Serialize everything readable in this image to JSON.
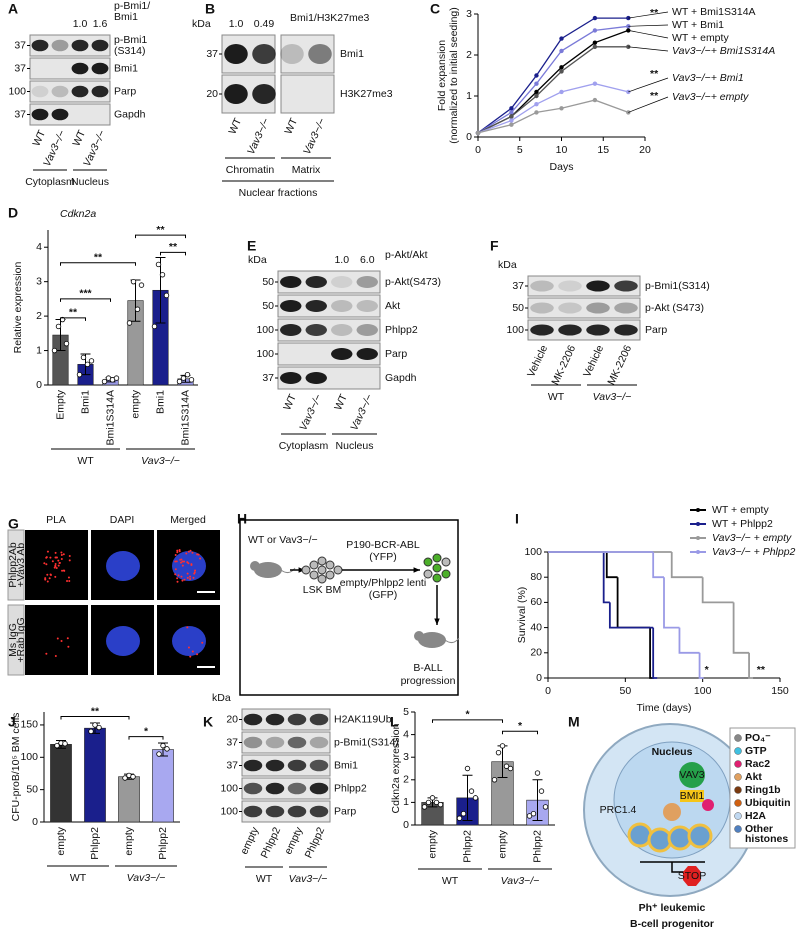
{
  "blots": [
    {
      "letter": "A",
      "header": [
        "p-Bmi1/",
        "Bmi1"
      ],
      "ratios": [
        null,
        null,
        "1.0",
        "1.6"
      ],
      "markers": [
        "37",
        "37",
        "100",
        "37"
      ],
      "rows": [
        [
          "p-Bmi1",
          "(S314)"
        ],
        [
          "Bmi1"
        ],
        [
          "Parp"
        ],
        [
          "Gapdh"
        ]
      ],
      "lanes": [
        "WT",
        "Vav3−/−",
        "WT",
        "Vav3−/−"
      ],
      "groups": [
        "Cytoplasm",
        "Nucleus"
      ]
    },
    {
      "letter": "B",
      "kda": "kDa",
      "header": [
        "Bmi1/H3K27me3"
      ],
      "ratios": [
        "1.0",
        "0.49",
        null,
        null
      ],
      "markers": [
        "37",
        "20"
      ],
      "rows": [
        [
          "Bmi1"
        ],
        [
          "H3K27me3"
        ]
      ],
      "lanes": [
        "WT",
        "Vav3−/−",
        "WT",
        "Vav3−/−"
      ],
      "groups": [
        "Chromatin",
        "Matrix"
      ],
      "super": "Nuclear fractions"
    },
    {
      "letter": "E",
      "kda": "kDa",
      "header": [
        "p-Akt/Akt"
      ],
      "ratios": [
        null,
        null,
        "1.0",
        "6.0"
      ],
      "markers": [
        "50",
        "50",
        "100",
        "100",
        "37"
      ],
      "rows": [
        [
          "p-Akt(S473)"
        ],
        [
          "Akt"
        ],
        [
          "Phlpp2"
        ],
        [
          "Parp"
        ],
        [
          "Gapdh"
        ]
      ],
      "lanes": [
        "WT",
        "Vav3−/−",
        "WT",
        "Vav3−/−"
      ],
      "groups": [
        "Cytoplasm",
        "Nucleus"
      ]
    },
    {
      "letter": "F",
      "kda": "kDa",
      "markers": [
        "37",
        "50",
        "100"
      ],
      "rows": [
        [
          "p-Bmi1(S314)"
        ],
        [
          "p-Akt (S473)"
        ],
        [
          "Parp"
        ]
      ],
      "lanes": [
        "Vehicle",
        "MK-2206",
        "Vehicle",
        "MK-2206"
      ],
      "groups": [
        "WT",
        "Vav3−/−"
      ]
    },
    {
      "letter": "K",
      "kda": "kDa",
      "markers": [
        "20",
        "37",
        "37",
        "100",
        "100"
      ],
      "rows": [
        [
          "H2AK119Ub"
        ],
        [
          "p-Bmi1(S314)"
        ],
        [
          "Bmi1"
        ],
        [
          "Phlpp2"
        ],
        [
          "Parp"
        ]
      ],
      "lanes": [
        "empty",
        "Phlpp2",
        "empty",
        "Phlpp2"
      ],
      "groups": [
        "WT",
        "Vav3−/−"
      ]
    }
  ],
  "chart_data": [
    {
      "letter": "C",
      "type": "line",
      "ylabel": [
        "Fold expansion",
        "(normalized to initial seeding)"
      ],
      "xlabel": "Days",
      "x": [
        0,
        4,
        7,
        10,
        14,
        18
      ],
      "xlim": [
        0,
        20
      ],
      "xticks": [
        0,
        5,
        10,
        15,
        20
      ],
      "ylim": [
        0,
        3
      ],
      "yticks": [
        0,
        1,
        2,
        3
      ],
      "series": [
        {
          "name": "WT + Bmi1S314A",
          "color": "#1a1f8c",
          "values": [
            0.1,
            0.7,
            1.5,
            2.4,
            2.9,
            2.9
          ]
        },
        {
          "name": "WT + Bmi1",
          "color": "#7a7ad8",
          "values": [
            0.1,
            0.6,
            1.3,
            2.1,
            2.6,
            2.7
          ]
        },
        {
          "name": "WT + empty",
          "color": "#000000",
          "values": [
            0.1,
            0.5,
            1.1,
            1.7,
            2.3,
            2.6
          ]
        },
        {
          "name": "Vav3−/−+ Bmi1S314A",
          "color": "#555555",
          "values": [
            0.1,
            0.5,
            1.0,
            1.6,
            2.2,
            2.2
          ]
        },
        {
          "name": "Vav3−/−+ Bmi1",
          "color": "#a0a0ee",
          "values": [
            0.1,
            0.4,
            0.8,
            1.1,
            1.3,
            1.1
          ]
        },
        {
          "name": "Vav3−/−+ empty",
          "color": "#9a9a9a",
          "values": [
            0.1,
            0.3,
            0.6,
            0.7,
            0.9,
            0.6
          ]
        }
      ],
      "annotations": [
        "**",
        "**",
        "**"
      ]
    },
    {
      "letter": "D",
      "type": "bar",
      "title": "Cdkn2a",
      "ylabel": "Relative expression",
      "categories": [
        "Empty",
        "Bmi1",
        "Bmi1S314A",
        "empty",
        "Bmi1",
        "Bmi1S314A"
      ],
      "values": [
        1.45,
        0.6,
        0.15,
        2.45,
        2.75,
        0.18
      ],
      "errors": [
        0.45,
        0.3,
        0.06,
        0.6,
        0.95,
        0.1
      ],
      "points": [
        [
          1.0,
          1.7,
          1.9,
          1.2
        ],
        [
          0.3,
          0.8,
          0.6,
          0.7
        ],
        [
          0.1,
          0.2,
          0.15,
          0.2
        ],
        [
          1.8,
          3.0,
          2.2,
          2.9
        ],
        [
          1.7,
          3.5,
          3.2,
          2.6
        ],
        [
          0.1,
          0.2,
          0.3,
          0.15
        ]
      ],
      "colors": [
        "#555555",
        "#1a1f8c",
        "#9a9ae6",
        "#999999",
        "#1a1f8c",
        "#9a9ae6"
      ],
      "groups": [
        "WT",
        "Vav3−/−"
      ],
      "ylim": [
        0,
        4.5
      ],
      "yticks": [
        0,
        1,
        2,
        3,
        4
      ],
      "significance": [
        "**",
        "***",
        "**",
        "**",
        "**"
      ]
    },
    {
      "letter": "I",
      "type": "survival",
      "xlabel": "Time (days)",
      "ylabel": "Survival (%)",
      "xlim": [
        0,
        150
      ],
      "xticks": [
        0,
        50,
        100,
        150
      ],
      "ylim": [
        0,
        100
      ],
      "yticks": [
        0,
        20,
        40,
        60,
        80,
        100
      ],
      "series": [
        {
          "name": "WT + empty",
          "color": "#000000",
          "x": [
            0,
            38,
            45,
            66
          ],
          "values": [
            100,
            80,
            40,
            0
          ]
        },
        {
          "name": "WT + Phlpp2",
          "color": "#1a1f8c",
          "x": [
            0,
            36,
            40,
            68
          ],
          "values": [
            100,
            60,
            40,
            0
          ]
        },
        {
          "name": "Vav3−/− + empty",
          "color": "#9a9a9a",
          "x": [
            0,
            80,
            100,
            120,
            130
          ],
          "values": [
            100,
            80,
            60,
            20,
            0
          ]
        },
        {
          "name": "Vav3−/− + Phlpp2",
          "color": "#9a9ae6",
          "x": [
            0,
            68,
            75,
            85,
            98
          ],
          "values": [
            100,
            80,
            40,
            20,
            0
          ]
        }
      ],
      "annotations": [
        "*",
        "**"
      ]
    },
    {
      "letter": "J",
      "type": "bar",
      "ylabel": "CFU-proB/10⁵ BM cells",
      "categories": [
        "empty",
        "Phlpp2",
        "empty",
        "Phlpp2"
      ],
      "values": [
        120,
        145,
        70,
        112
      ],
      "errors": [
        6,
        8,
        4,
        10
      ],
      "points": [
        [
          118,
          122,
          121
        ],
        [
          140,
          150,
          146
        ],
        [
          68,
          72,
          70
        ],
        [
          105,
          118,
          113
        ]
      ],
      "colors": [
        "#333333",
        "#1a1f8c",
        "#999999",
        "#a8a8f0"
      ],
      "groups": [
        "WT",
        "Vav3−/−"
      ],
      "ylim": [
        0,
        170
      ],
      "yticks": [
        0,
        50,
        100,
        150
      ],
      "significance": [
        "**",
        "*"
      ]
    },
    {
      "letter": "L",
      "type": "bar",
      "ylabel": "Cdkn2a expression",
      "categories": [
        "empty",
        "Phlpp2",
        "empty",
        "Phlpp2"
      ],
      "values": [
        1.0,
        1.2,
        2.8,
        1.1
      ],
      "errors": [
        0.2,
        1.0,
        0.7,
        0.9
      ],
      "points": [
        [
          0.8,
          1.0,
          1.2,
          1.0,
          0.9
        ],
        [
          0.3,
          0.5,
          2.5,
          1.5,
          1.2
        ],
        [
          2.0,
          3.2,
          3.5,
          2.6,
          2.5
        ],
        [
          0.4,
          0.5,
          2.3,
          1.5,
          0.8
        ]
      ],
      "colors": [
        "#555555",
        "#1a1f8c",
        "#999999",
        "#a8a8f0"
      ],
      "groups": [
        "WT",
        "Vav3−/−"
      ],
      "ylim": [
        0,
        5
      ],
      "yticks": [
        0,
        1,
        2,
        3,
        4,
        5
      ],
      "significance": [
        "*",
        "*"
      ]
    }
  ],
  "images": {
    "letter": "G",
    "columns": [
      "PLA",
      "DAPI",
      "Merged"
    ],
    "rows": [
      [
        "Phlpp2Ab",
        "+Vav3 Ab"
      ],
      [
        "Ms IgG",
        "+Rab IgG"
      ]
    ]
  },
  "schematic": {
    "letter": "H",
    "source": "WT or Vav3−/−",
    "cells": "LSK BM",
    "construct": [
      "P190-BCR-ABL",
      "(YFP)"
    ],
    "lenti": [
      "empty/Phlpp2 lenti",
      "(GFP)"
    ],
    "outcome": [
      "B-ALL",
      "progression"
    ]
  },
  "model": {
    "letter": "M",
    "compartment": "Nucleus",
    "proteins": [
      "VAV3",
      "BMI1",
      "PRC1.4"
    ],
    "stop": "STOP",
    "legend": [
      [
        "PO₄⁻"
      ],
      [
        "GTP"
      ],
      [
        "Rac2"
      ],
      [
        "Akt"
      ],
      [
        "Ring1b"
      ],
      [
        "Ubiquitin"
      ],
      [
        "H2A"
      ],
      [
        "Other",
        "histones"
      ]
    ],
    "caption": [
      "Ph⁺ leukemic",
      "B-cell progenitor"
    ]
  }
}
